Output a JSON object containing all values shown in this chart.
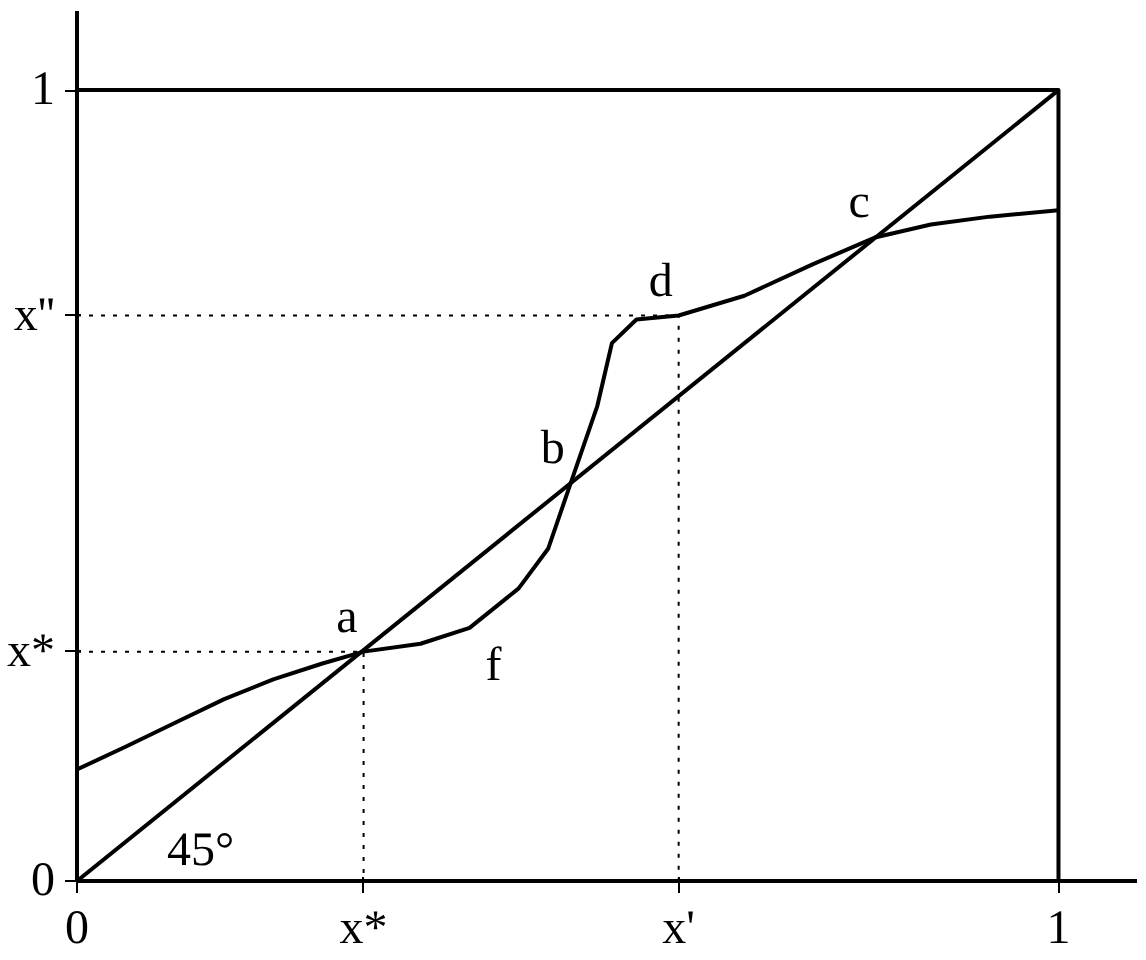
{
  "chart_data": {
    "type": "line",
    "xlim": [
      0,
      1.08
    ],
    "ylim": [
      0,
      1.1
    ],
    "xticks": [
      0,
      {
        "value": 0.292,
        "label": "x*"
      },
      {
        "value": 0.613,
        "label": "x'"
      },
      {
        "value": 1,
        "label": "1"
      }
    ],
    "yticks": [
      0,
      {
        "value": 0.29,
        "label": "x*"
      },
      {
        "value": 0.715,
        "label": "x''"
      },
      1
    ],
    "grid": false,
    "marker": "none",
    "series": [
      {
        "color": "#000000",
        "line_style": "solid",
        "x": [
          0,
          0.05,
          0.1,
          0.15,
          0.2,
          0.25,
          0.292,
          0.35,
          0.4,
          0.45,
          0.48,
          0.503,
          0.53,
          0.545,
          0.57,
          0.613,
          0.68,
          0.75,
          0.814,
          0.87,
          0.93,
          1
        ],
        "values": [
          0.141,
          0.17,
          0.2,
          0.23,
          0.255,
          0.275,
          0.29,
          0.3,
          0.32,
          0.37,
          0.42,
          0.503,
          0.6,
          0.68,
          0.71,
          0.715,
          0.74,
          0.78,
          0.814,
          0.83,
          0.84,
          0.848
        ]
      },
      {
        "color": "#000000",
        "line_style": "solid",
        "x": [
          0,
          1
        ],
        "values": [
          0,
          1
        ]
      },
      {
        "color": "#000000",
        "line_style": "solid",
        "x": [
          0,
          1,
          1
        ],
        "values": [
          1,
          1,
          0
        ]
      },
      {
        "color": "#000000",
        "line_style": "dotted",
        "x": [
          0,
          0.292,
          0.292
        ],
        "values": [
          0.29,
          0.29,
          0
        ]
      },
      {
        "color": "#000000",
        "line_style": "dotted",
        "x": [
          0,
          0.613,
          0.613
        ],
        "values": [
          0.715,
          0.715,
          0
        ]
      }
    ],
    "annotations": [
      {
        "text": "a",
        "x": 0.292,
        "y": 0.29
      },
      {
        "text": "b",
        "x": 0.503,
        "y": 0.503
      },
      {
        "text": "c",
        "x": 0.814,
        "y": 0.814
      },
      {
        "text": "d",
        "x": 0.613,
        "y": 0.715
      },
      {
        "text": "f",
        "x": 0.4,
        "y": 0.32
      },
      {
        "text": "45°",
        "x": 0,
        "y": 0
      }
    ]
  }
}
